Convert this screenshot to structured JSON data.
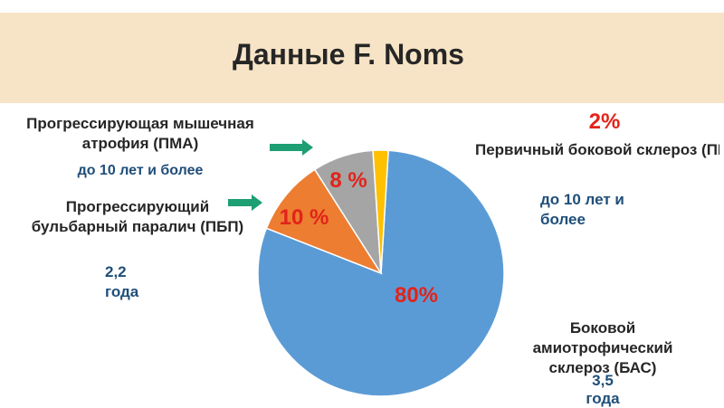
{
  "title": "Данные F. Noms",
  "colors": {
    "banner": "#f7e4c6",
    "bas": "#5b9bd5",
    "pbp": "#ed7d31",
    "pma": "#a5a5a5",
    "pbs": "#ffc000",
    "arrow": "#1d9e73",
    "percent": "#e2231a",
    "duration": "#1f4e79"
  },
  "chart_data": {
    "type": "pie",
    "categories": [
      "Боковой амиотрофический склероз (БАС)",
      "Прогрессирующий бульбарный паралич (ПБП)",
      "Прогрессирующая мышечная атрофия (ПМА)",
      "Первичный боковой склероз (ПБС)"
    ],
    "values": [
      80,
      10,
      8,
      2
    ],
    "data_labels": [
      "80%",
      "10 %",
      "8 %",
      "2%"
    ]
  },
  "labels": {
    "pma_name": "Прогрессирующая мышечная атрофия (ПМА)",
    "pma_duration": "до 10 лет и более",
    "pbp_name": "Прогрессирующий бульбарный паралич (ПБП)",
    "pbp_duration": "2,2 года",
    "pbs_name": "Первичный боковой склероз (ПБС)",
    "pbs_duration": "до 10 лет и более",
    "bas_name": "Боковой амиотрофический склероз (БАС)",
    "bas_duration": "3,5 года"
  }
}
